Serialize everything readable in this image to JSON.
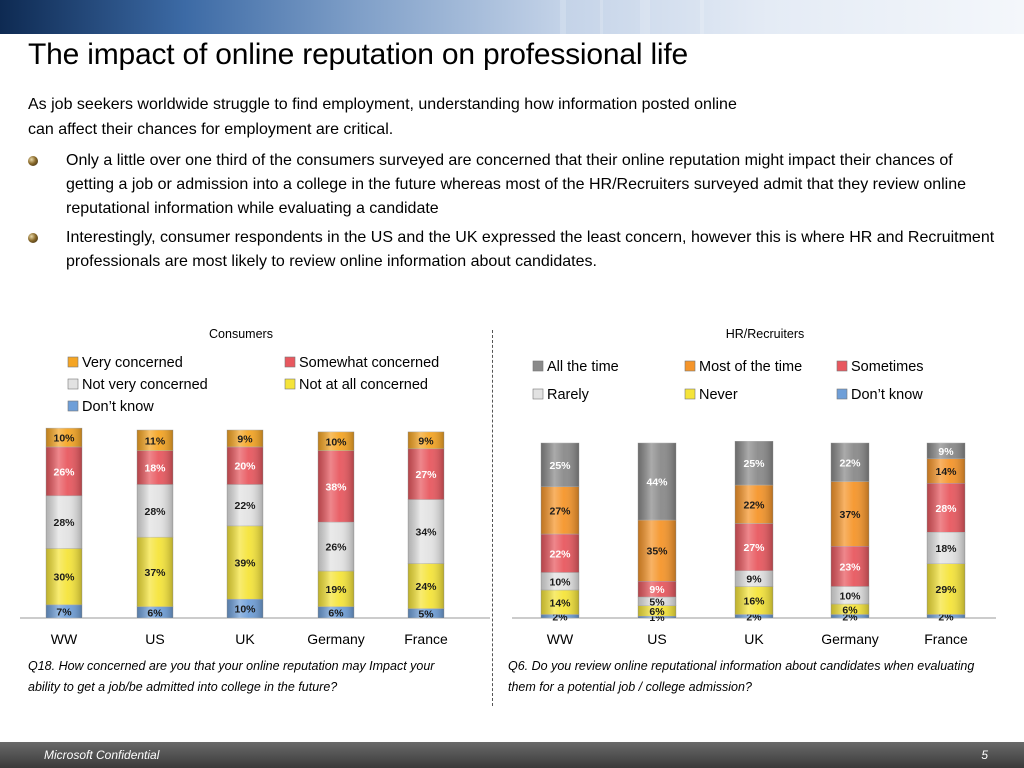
{
  "slide": {
    "title": "The impact of online reputation on professional life",
    "intro_line1": "As job seekers worldwide struggle to find employment, understanding how information posted online",
    "intro_line2": "can affect their chances for employment are critical.",
    "bullets": [
      "Only a little over one third of the consumers surveyed are concerned that their online reputation might impact their chances of getting a job or admission into a college in the future whereas most of the HR/Recruiters surveyed admit that they review online reputational information while evaluating a candidate",
      "Interestingly, consumer respondents in the US and the UK expressed the least concern, however this is where HR and Recruitment professionals are most likely to review online information about candidates."
    ]
  },
  "footer": {
    "confidential": "Microsoft Confidential",
    "page_number": "5"
  },
  "chart_data": [
    {
      "type": "bar",
      "stacked": true,
      "title": "Consumers",
      "categories": [
        "WW",
        "US",
        "UK",
        "Germany",
        "France"
      ],
      "series": [
        {
          "name": "Don’t know",
          "color": "#6f9fd8",
          "values": [
            7,
            6,
            10,
            6,
            5
          ]
        },
        {
          "name": "Not at all concerned",
          "color": "#f5e43a",
          "values": [
            30,
            37,
            39,
            19,
            24
          ]
        },
        {
          "name": "Not very concerned",
          "color": "#e2e2e2",
          "values": [
            28,
            28,
            22,
            26,
            34
          ]
        },
        {
          "name": "Somewhat concerned",
          "color": "#e8585f",
          "values": [
            26,
            18,
            20,
            38,
            27
          ]
        },
        {
          "name": "Very concerned",
          "color": "#f5a524",
          "values": [
            10,
            11,
            9,
            10,
            9
          ]
        }
      ],
      "legend_order": [
        "Very concerned",
        "Somewhat concerned",
        "Not very concerned",
        "Not at all concerned",
        "Don’t know"
      ],
      "question": "Q18. How concerned are you that your online reputation may Impact your ability to get a job/be admitted into college in the future?"
    },
    {
      "type": "bar",
      "stacked": true,
      "title": "HR/Recruiters",
      "categories": [
        "WW",
        "US",
        "UK",
        "Germany",
        "France"
      ],
      "series": [
        {
          "name": "Don’t know",
          "color": "#6f9fd8",
          "values": [
            2,
            1,
            2,
            2,
            2
          ]
        },
        {
          "name": "Never",
          "color": "#f5e43a",
          "values": [
            14,
            6,
            16,
            6,
            29
          ]
        },
        {
          "name": "Rarely",
          "color": "#e2e2e2",
          "values": [
            10,
            5,
            9,
            10,
            18
          ]
        },
        {
          "name": "Sometimes",
          "color": "#e8585f",
          "values": [
            22,
            9,
            27,
            23,
            28
          ]
        },
        {
          "name": "Most of the time",
          "color": "#f5952a",
          "values": [
            27,
            35,
            22,
            37,
            14
          ]
        },
        {
          "name": "All the time",
          "color": "#8a8a8a",
          "values": [
            25,
            44,
            25,
            22,
            9
          ]
        }
      ],
      "legend_order": [
        "All the time",
        "Most of the time",
        "Sometimes",
        "Rarely",
        "Never",
        "Don’t know"
      ],
      "question": "Q6. Do you review online reputational information about candidates when evaluating them for a potential job / college admission?"
    }
  ]
}
